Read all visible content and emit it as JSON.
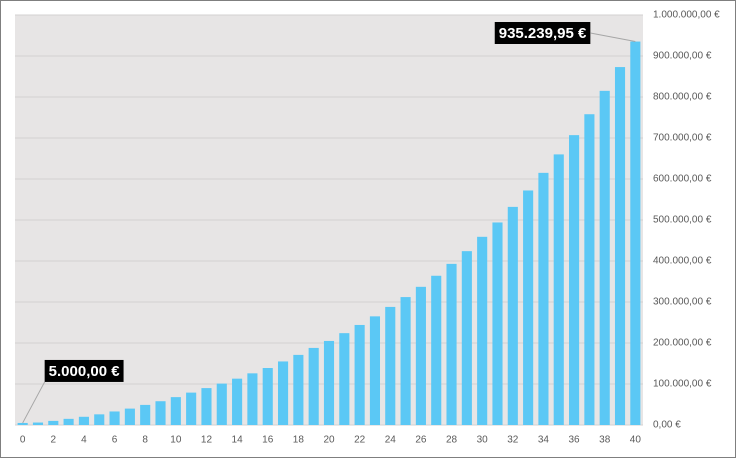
{
  "chart_data": {
    "type": "bar",
    "categories": [
      "0",
      null,
      "2",
      null,
      "4",
      null,
      "6",
      null,
      "8",
      null,
      "10",
      null,
      "12",
      null,
      "14",
      null,
      "16",
      null,
      "18",
      null,
      "20",
      null,
      "22",
      null,
      "24",
      null,
      "26",
      null,
      "28",
      null,
      "30",
      null,
      "32",
      null,
      "34",
      null,
      "36",
      null,
      "38",
      null,
      "40"
    ],
    "values": [
      5000,
      6000,
      10000,
      15000,
      20000,
      26000,
      33000,
      40000,
      49000,
      58000,
      68000,
      79000,
      90000,
      101000,
      113000,
      126000,
      139000,
      155000,
      171000,
      188000,
      205000,
      224000,
      244000,
      265000,
      288000,
      312000,
      337000,
      364000,
      393000,
      424000,
      459000,
      494000,
      532000,
      572000,
      615000,
      660000,
      707000,
      758000,
      815000,
      873000,
      935239.95
    ],
    "value_labels": [
      "5.000,00 €",
      null,
      null,
      null,
      null,
      null,
      null,
      null,
      null,
      null,
      null,
      null,
      null,
      null,
      null,
      null,
      null,
      null,
      null,
      null,
      null,
      null,
      null,
      null,
      null,
      null,
      null,
      null,
      null,
      null,
      null,
      null,
      null,
      null,
      null,
      null,
      null,
      null,
      null,
      null,
      "935.239,95 €"
    ],
    "color": "#5bc8f5",
    "ylim": [
      0,
      1000000
    ],
    "yticks": [
      {
        "value": 0,
        "label": "0,00 €"
      },
      {
        "value": 100000,
        "label": "100.000,00 €"
      },
      {
        "value": 200000,
        "label": "200.000,00 €"
      },
      {
        "value": 300000,
        "label": "300.000,00 €"
      },
      {
        "value": 400000,
        "label": "400.000,00 €"
      },
      {
        "value": 500000,
        "label": "500.000,00 €"
      },
      {
        "value": 600000,
        "label": "600.000,00 €"
      },
      {
        "value": 700000,
        "label": "700.000,00 €"
      },
      {
        "value": 800000,
        "label": "800.000,00 €"
      },
      {
        "value": 900000,
        "label": "900.000,00 €"
      },
      {
        "value": 1000000,
        "label": "1.000.000,00 €"
      }
    ],
    "grid": true,
    "y_axis_side": "right"
  }
}
